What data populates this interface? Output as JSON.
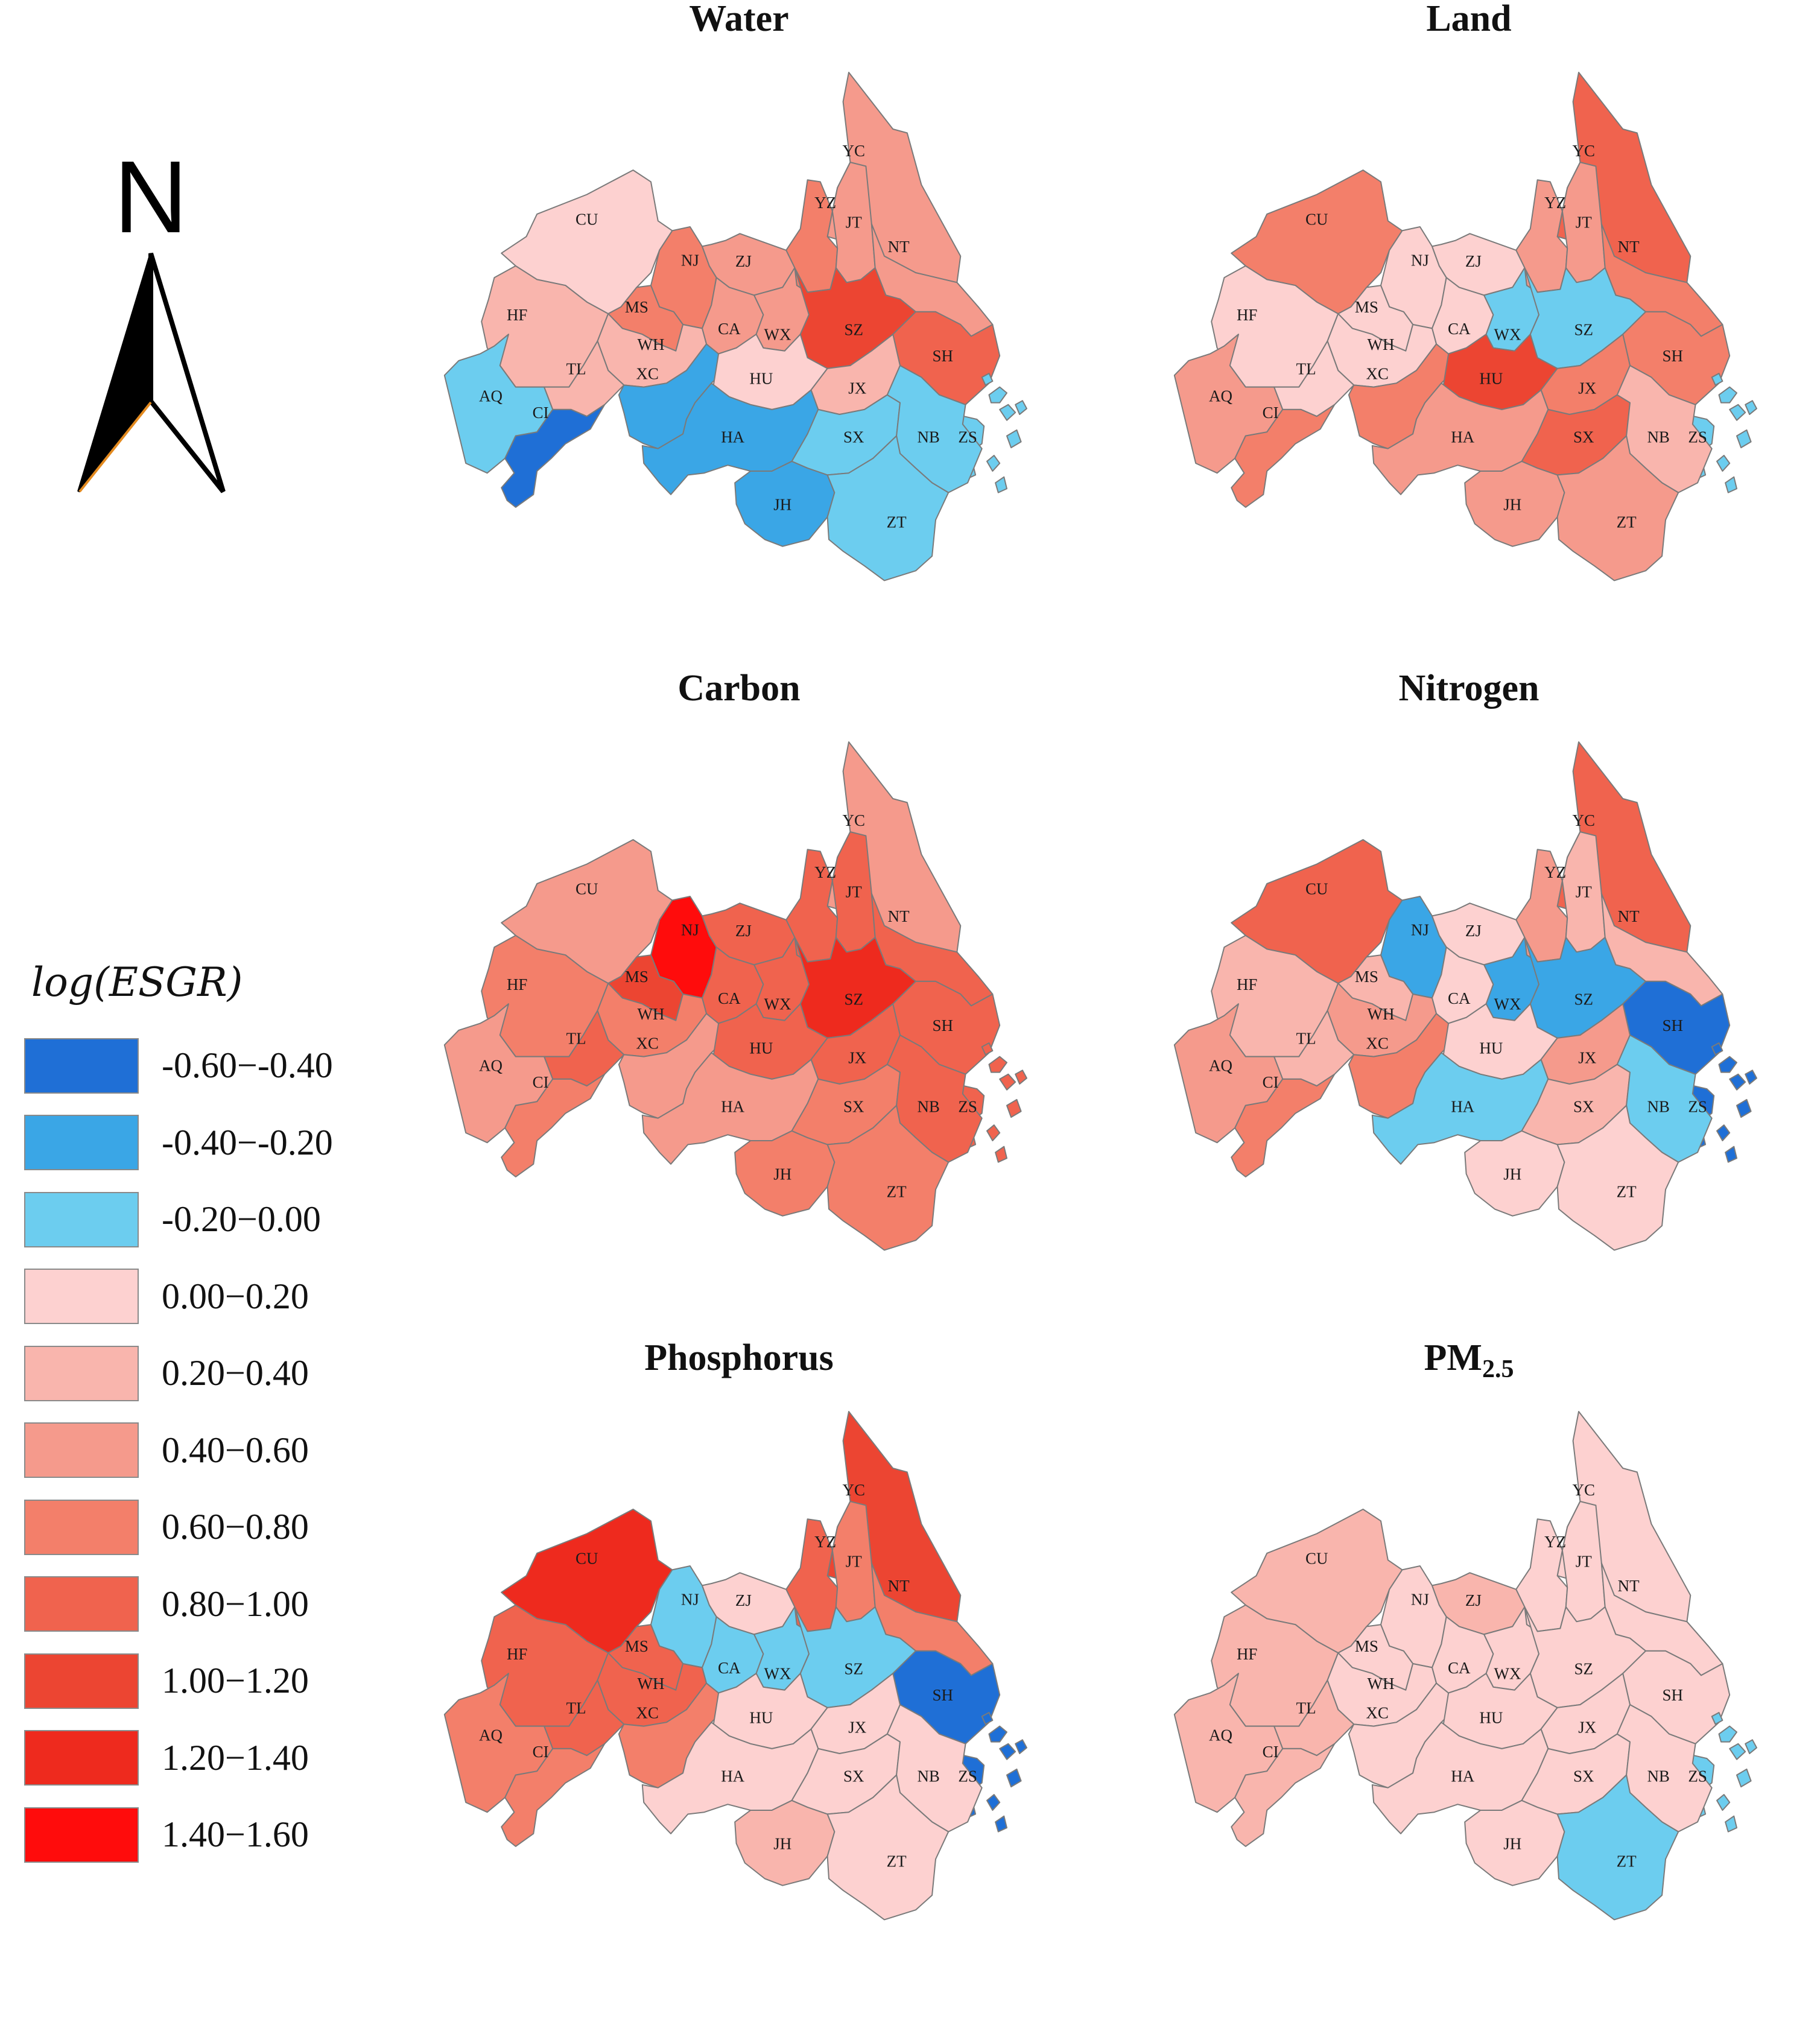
{
  "north_arrow": {
    "label": "N"
  },
  "legend": {
    "title": "log(ESGR)",
    "classes": [
      {
        "label": "-0.60−-0.40",
        "color": "#1f6fd6"
      },
      {
        "label": "-0.40−-0.20",
        "color": "#3aa6e6"
      },
      {
        "label": "-0.20−0.00",
        "color": "#6ccdef"
      },
      {
        "label": "0.00−0.20",
        "color": "#fdd1d0"
      },
      {
        "label": "0.20−0.40",
        "color": "#f9b5ad"
      },
      {
        "label": "0.40−0.60",
        "color": "#f59a8c"
      },
      {
        "label": "0.60−0.80",
        "color": "#f37f6a"
      },
      {
        "label": "0.80−1.00",
        "color": "#f0634e"
      },
      {
        "label": "1.00−1.20",
        "color": "#ec4532"
      },
      {
        "label": "1.20−1.40",
        "color": "#ee2a1e"
      },
      {
        "label": "1.40−1.60",
        "color": "#ff0c0c"
      }
    ]
  },
  "cities": [
    "YC",
    "CU",
    "YZ",
    "JT",
    "NT",
    "NJ",
    "ZJ",
    "HF",
    "MS",
    "CA",
    "WX",
    "SZ",
    "SH",
    "WH",
    "TL",
    "AQ",
    "CI",
    "XC",
    "HU",
    "JX",
    "ZS",
    "HA",
    "SX",
    "NB",
    "JH",
    "ZT"
  ],
  "maps": [
    {
      "title": "Water",
      "subscript": "",
      "classes": {
        "YC": 5,
        "CU": 3,
        "YZ": 6,
        "JT": 5,
        "NT": 5,
        "NJ": 6,
        "ZJ": 5,
        "HF": 4,
        "MS": 6,
        "CA": 5,
        "WX": 5,
        "SZ": 8,
        "SH": 7,
        "WH": 4,
        "TL": 4,
        "AQ": 2,
        "CI": 0,
        "XC": 1,
        "HU": 3,
        "JX": 4,
        "ZS": 2,
        "HA": 1,
        "SX": 2,
        "NB": 2,
        "JH": 1,
        "ZT": 2
      }
    },
    {
      "title": "Land",
      "subscript": "",
      "classes": {
        "YC": 7,
        "CU": 6,
        "YZ": 5,
        "JT": 5,
        "NT": 6,
        "NJ": 3,
        "ZJ": 3,
        "HF": 3,
        "MS": 3,
        "CA": 3,
        "WX": 2,
        "SZ": 2,
        "SH": 6,
        "WH": 3,
        "TL": 3,
        "AQ": 5,
        "CI": 6,
        "XC": 6,
        "HU": 8,
        "JX": 6,
        "ZS": 2,
        "HA": 5,
        "SX": 7,
        "NB": 4,
        "JH": 5,
        "ZT": 5
      }
    },
    {
      "title": "Carbon",
      "subscript": "",
      "classes": {
        "YC": 5,
        "CU": 5,
        "YZ": 7,
        "JT": 7,
        "NT": 7,
        "NJ": 10,
        "ZJ": 7,
        "HF": 6,
        "MS": 8,
        "CA": 7,
        "WX": 7,
        "SZ": 9,
        "SH": 7,
        "WH": 6,
        "TL": 7,
        "AQ": 5,
        "CI": 6,
        "XC": 5,
        "HU": 7,
        "JX": 7,
        "ZS": 7,
        "HA": 5,
        "SX": 6,
        "NB": 7,
        "JH": 6,
        "ZT": 6
      }
    },
    {
      "title": "Nitrogen",
      "subscript": "",
      "classes": {
        "YC": 7,
        "CU": 7,
        "YZ": 5,
        "JT": 4,
        "NT": 4,
        "NJ": 1,
        "ZJ": 3,
        "HF": 4,
        "MS": 4,
        "CA": 3,
        "WX": 1,
        "SZ": 1,
        "SH": 0,
        "WH": 5,
        "TL": 4,
        "AQ": 5,
        "CI": 6,
        "XC": 6,
        "HU": 3,
        "JX": 5,
        "ZS": 0,
        "HA": 2,
        "SX": 4,
        "NB": 2,
        "JH": 3,
        "ZT": 3
      }
    },
    {
      "title": "Phosphorus",
      "subscript": "",
      "classes": {
        "YC": 8,
        "CU": 9,
        "YZ": 7,
        "JT": 6,
        "NT": 6,
        "NJ": 2,
        "ZJ": 3,
        "HF": 7,
        "MS": 7,
        "CA": 2,
        "WX": 2,
        "SZ": 2,
        "SH": 0,
        "WH": 7,
        "TL": 7,
        "AQ": 6,
        "CI": 6,
        "XC": 6,
        "HU": 3,
        "JX": 3,
        "ZS": 0,
        "HA": 3,
        "SX": 3,
        "NB": 3,
        "JH": 4,
        "ZT": 3
      }
    },
    {
      "title": "PM",
      "subscript": "2.5",
      "classes": {
        "YC": 3,
        "CU": 4,
        "YZ": 3,
        "JT": 3,
        "NT": 3,
        "NJ": 3,
        "ZJ": 4,
        "HF": 4,
        "MS": 3,
        "CA": 3,
        "WX": 3,
        "SZ": 3,
        "SH": 3,
        "WH": 3,
        "TL": 4,
        "AQ": 4,
        "CI": 4,
        "XC": 3,
        "HU": 3,
        "JX": 3,
        "ZS": 2,
        "HA": 3,
        "SX": 3,
        "NB": 3,
        "JH": 3,
        "ZT": 2
      }
    }
  ]
}
